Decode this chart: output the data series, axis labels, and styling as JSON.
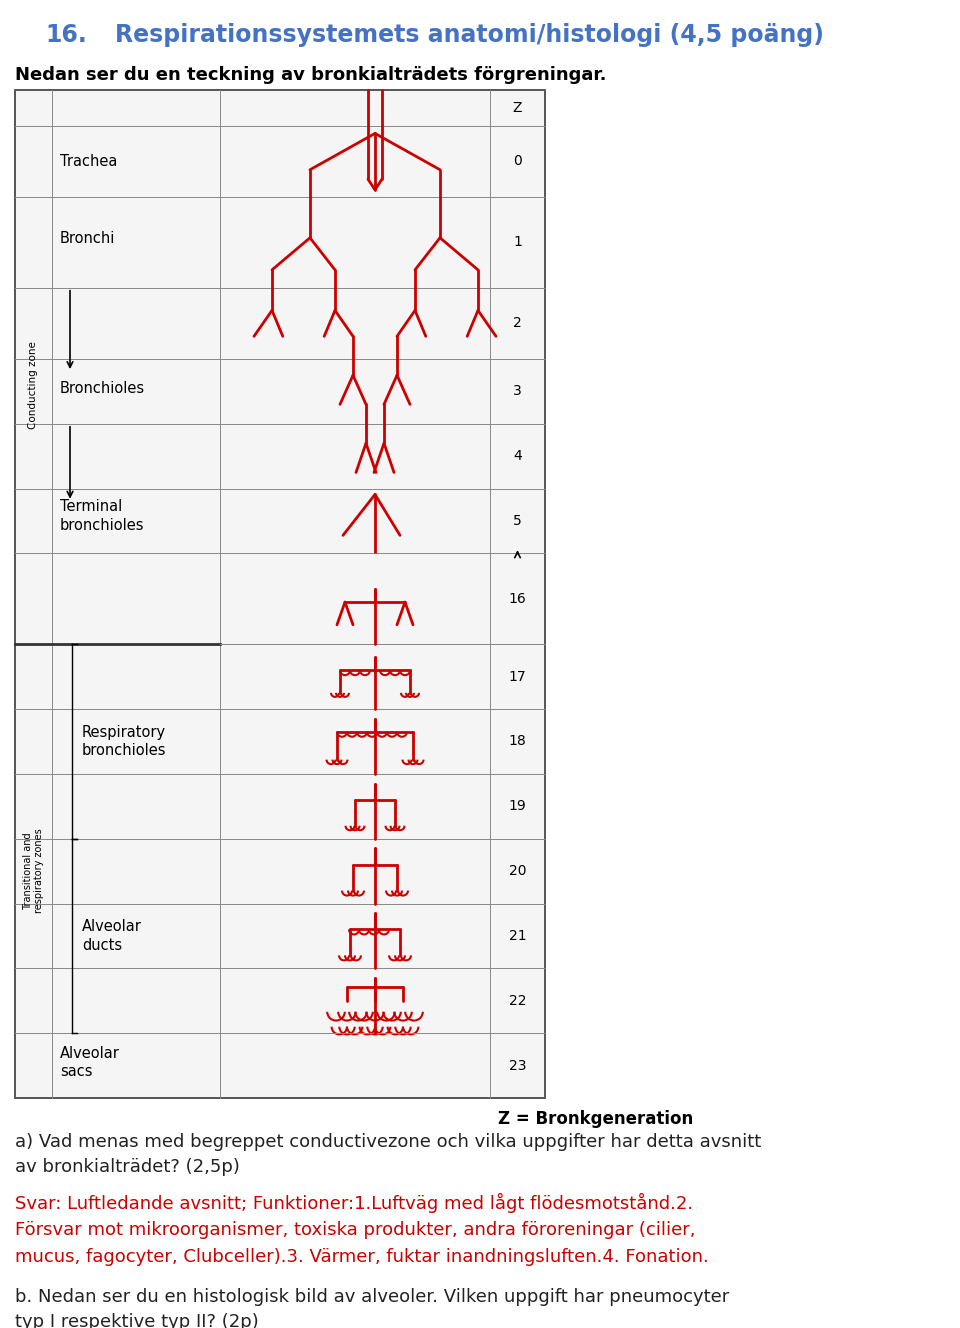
{
  "title_number": "16.",
  "title_text": "Respirationssystemets anatomi/histologi (4,5 poäng)",
  "title_color": "#4472C4",
  "subtitle": "Nedan ser du en teckning av bronkialträdets förgreningar.",
  "subtitle_color": "#000000",
  "z_label": "Z = Bronkgeneration",
  "question_a": "a) Vad menas med begreppet conductivezone och vilka uppgifter har detta avsnitt\nav bronkialträdet? (2,5p)",
  "answer_a": "Svar: Luftledande avsnitt; Funktioner:1.Luftväg med lågt flödesmotstånd.2.\nFörsvar mot mikroorganismer, toxiska produkter, andra föroreningar (cilier,\nmucus, fagocyter, Clubceller).3. Värmer, fuktar inandningsluften.4. Fonation.",
  "answer_color": "#CC0000",
  "question_b": "b. Nedan ser du en histologisk bild av alveoler. Vilken uppgift har pneumocyter\ntyp I respektive typ II? (2p)",
  "question_color": "#222222",
  "bg_color": "#FFFFFF",
  "tree_color": "#CC0000",
  "row_labels": [
    "Z",
    "0",
    "1",
    "2",
    "3",
    "4",
    "5",
    "16",
    "17",
    "18",
    "19",
    "20",
    "21",
    "22",
    "23"
  ],
  "row_heights_rel": [
    0.55,
    1.1,
    1.4,
    1.1,
    1.0,
    1.0,
    1.0,
    1.4,
    1.0,
    1.0,
    1.0,
    1.0,
    1.0,
    1.0,
    1.0
  ]
}
